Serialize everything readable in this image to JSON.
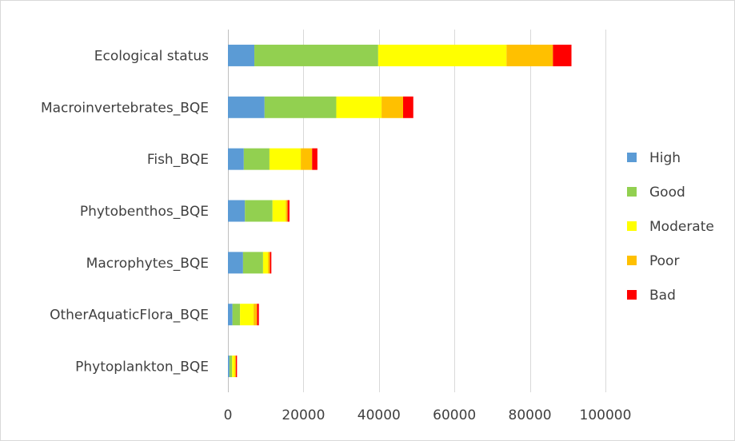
{
  "chart_data": {
    "type": "bar",
    "orientation": "horizontal",
    "stacked": true,
    "title": "",
    "xlabel": "",
    "ylabel": "",
    "categories": [
      "Ecological status",
      "Macroinvertebrates_BQE",
      "Fish_BQE",
      "Phytobenthos_BQE",
      "Macrophytes_BQE",
      "OtherAquaticFlora_BQE",
      "Phytoplankton_BQE"
    ],
    "series": [
      {
        "name": "High",
        "color": "#5B9BD5",
        "values": [
          7000,
          9700,
          4200,
          4500,
          4000,
          1200,
          400
        ]
      },
      {
        "name": "Good",
        "color": "#92D050",
        "values": [
          32800,
          19000,
          6800,
          7300,
          5300,
          2000,
          700
        ]
      },
      {
        "name": "Moderate",
        "color": "#FFFF00",
        "values": [
          34000,
          12000,
          8300,
          3500,
          1300,
          3600,
          700
        ]
      },
      {
        "name": "Poor",
        "color": "#FFC000",
        "values": [
          12300,
          5700,
          3000,
          500,
          500,
          900,
          300
        ]
      },
      {
        "name": "Bad",
        "color": "#FF0000",
        "values": [
          4900,
          2700,
          1400,
          500,
          400,
          500,
          300
        ]
      }
    ],
    "xlim": [
      0,
      100000
    ],
    "xticks": [
      0,
      20000,
      40000,
      60000,
      80000,
      100000
    ],
    "xtick_labels": [
      "0",
      "20000",
      "40000",
      "60000",
      "80000",
      "100000"
    ],
    "grid": "vertical",
    "legend_position": "right"
  }
}
